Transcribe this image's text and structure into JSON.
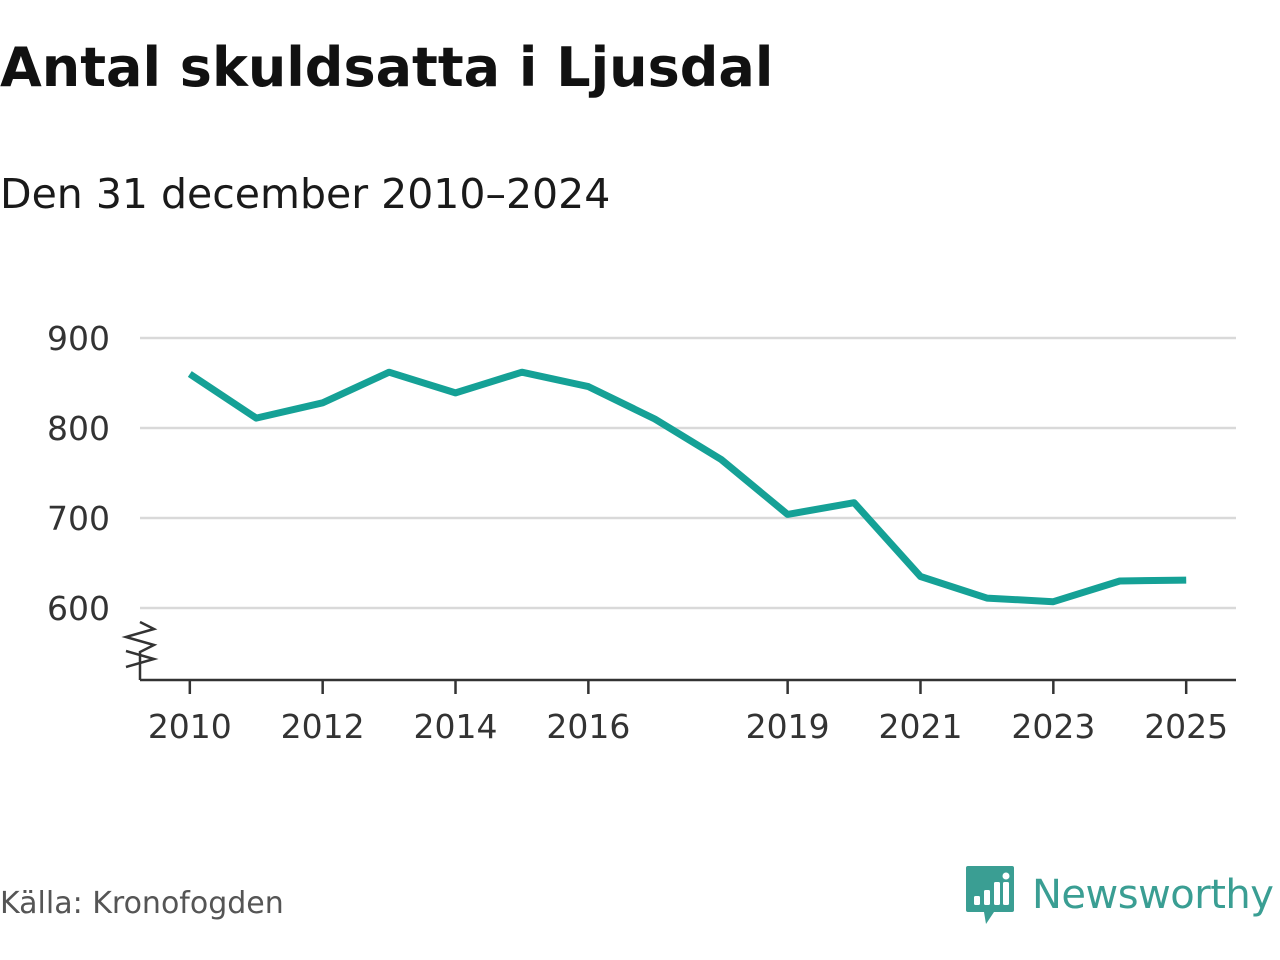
{
  "chart_data": {
    "type": "line",
    "title": "Antal skuldsatta i Ljusdal",
    "subtitle": "Den 31 december 2010–2024",
    "xlabel": "",
    "ylabel": "",
    "x": [
      2010,
      2011,
      2012,
      2013,
      2014,
      2015,
      2016,
      2017,
      2018,
      2019,
      2020,
      2021,
      2022,
      2023,
      2024,
      2025
    ],
    "values": [
      860,
      811,
      828,
      862,
      839,
      862,
      846,
      810,
      765,
      704,
      717,
      635,
      611,
      607,
      630,
      631
    ],
    "x_ticks": [
      "2010",
      "2012",
      "2014",
      "2016",
      "2019",
      "2021",
      "2023",
      "2025"
    ],
    "y_ticks": [
      "600",
      "700",
      "800",
      "900"
    ],
    "ylim": [
      520,
      900
    ],
    "xlim": [
      2009.25,
      2025.75
    ],
    "axis_break": true,
    "grid": true,
    "line_color": "#15a196",
    "grid_color": "#d9d9d9"
  },
  "source": {
    "text": "Källa: Kronofogden"
  },
  "brand": {
    "name": "Newsworthy",
    "icon": "newsworthy-logo-icon",
    "color": "#3a9e93"
  }
}
